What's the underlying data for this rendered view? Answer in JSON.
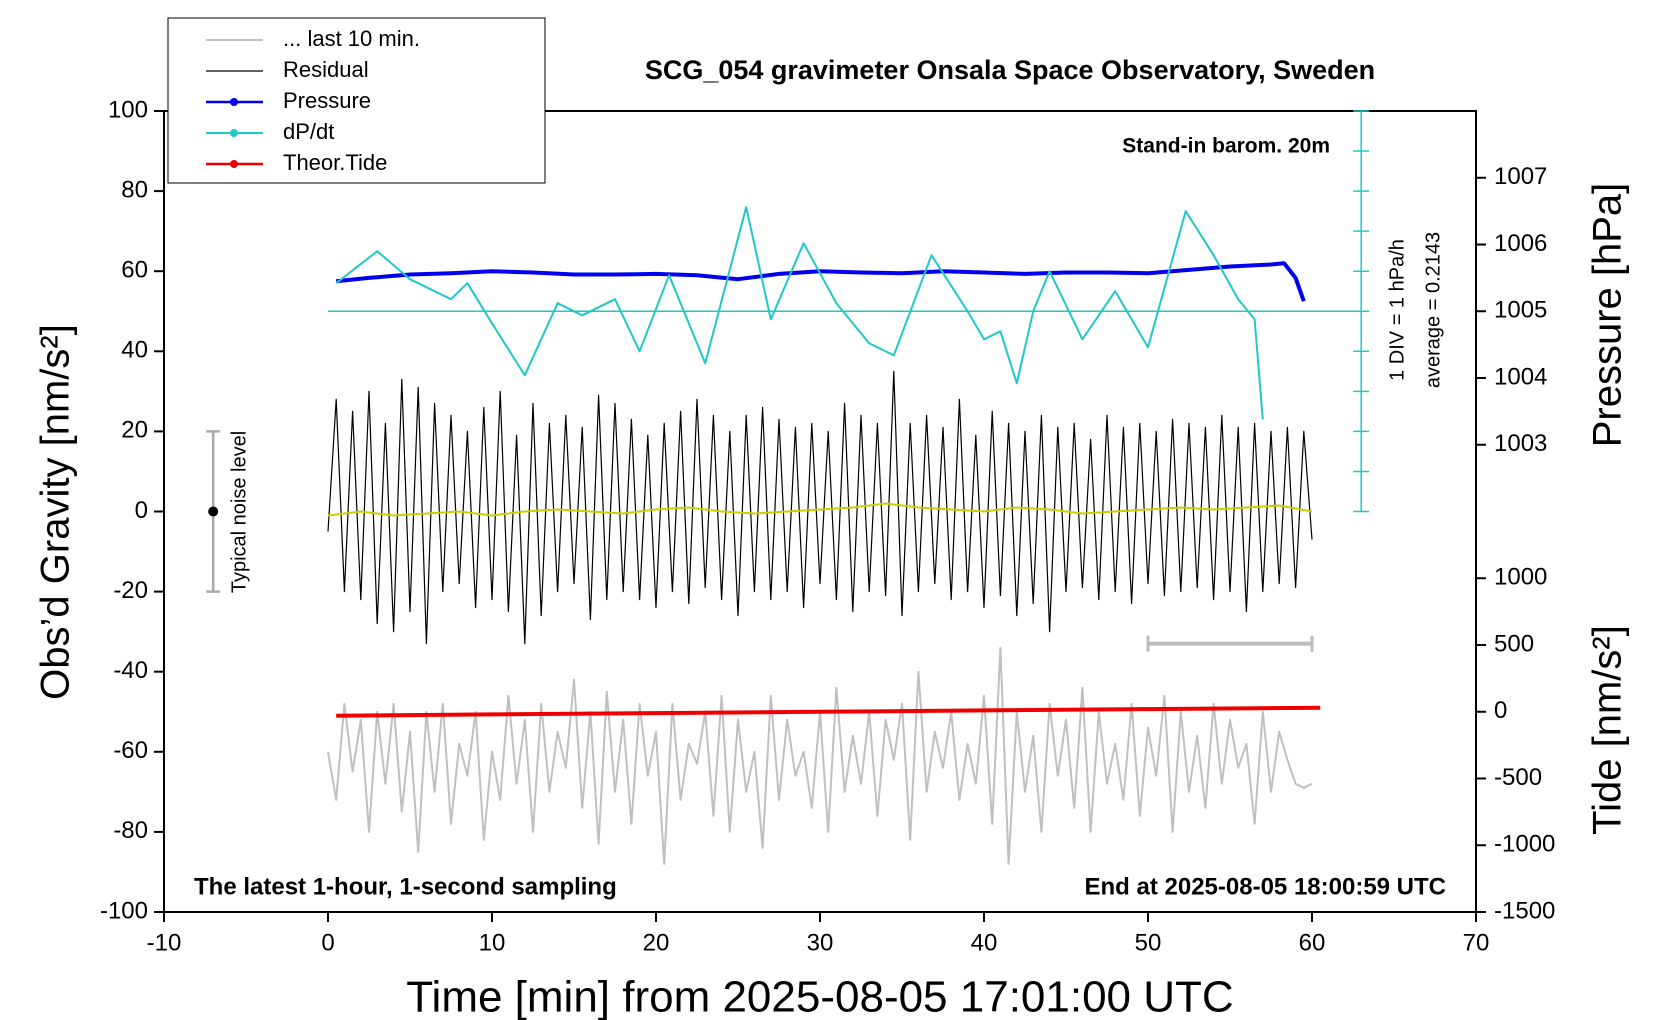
{
  "chart_data": {
    "type": "line",
    "title": "SCG_054 gravimeter Onsala Space Observatory, Sweden",
    "subtitle": "Stand-in barom. 20m",
    "annotations": [
      "1 DIV = 1 hPa/h",
      "average = 0.2143",
      "Typical noise level",
      "The latest 1-hour, 1-second sampling",
      "End at 2025-08-05 18:00:59 UTC"
    ],
    "xlabel": "Time [min] from 2025-08-05 17:01:00 UTC",
    "ylabel": "Obs’d Gravity [nm/s²]",
    "y2label": "Pressure [hPa]",
    "y3label": "Tide [nm/s²]",
    "legend": "upper left",
    "xlim": [
      -10,
      70
    ],
    "xticks": [
      -10,
      0,
      10,
      20,
      30,
      40,
      50,
      60,
      70
    ],
    "ylim": [
      -100,
      100
    ],
    "yticks": [
      -100,
      -80,
      -60,
      -40,
      -20,
      0,
      20,
      40,
      60,
      80,
      100
    ],
    "y2lim": [
      996,
      1008
    ],
    "y2ticks": [
      1003,
      1004,
      1005,
      1006,
      1007
    ],
    "y3lim": [
      -1500,
      4500
    ],
    "y3ticks": [
      -1500,
      -1000,
      -500,
      0,
      500,
      1000
    ],
    "y4lim": [
      -15,
      5
    ],
    "y4ticks": [
      -5,
      -4,
      -3,
      -2,
      -1,
      0,
      1,
      2,
      3,
      4,
      5
    ],
    "y4_axis_x": 63,
    "noise_bar": {
      "x": -7,
      "value": 0,
      "low": -20,
      "high": 20
    },
    "bracket": {
      "x": [
        50,
        60
      ],
      "y": -33
    },
    "x": [
      0,
      0.5,
      1,
      1.5,
      2,
      2.5,
      3,
      3.5,
      4,
      4.5,
      5,
      5.5,
      6,
      6.5,
      7,
      7.5,
      8,
      8.5,
      9,
      9.5,
      10,
      10.5,
      11,
      11.5,
      12,
      12.5,
      13,
      13.5,
      14,
      14.5,
      15,
      15.5,
      16,
      16.5,
      17,
      17.5,
      18,
      18.5,
      19,
      19.5,
      20,
      20.5,
      21,
      21.5,
      22,
      22.5,
      23,
      23.5,
      24,
      24.5,
      25,
      25.5,
      26,
      26.5,
      27,
      27.5,
      28,
      28.5,
      29,
      29.5,
      30,
      30.5,
      31,
      31.5,
      32,
      32.5,
      33,
      33.5,
      34,
      34.5,
      35,
      35.5,
      36,
      36.5,
      37,
      37.5,
      38,
      38.5,
      39,
      39.5,
      40,
      40.5,
      41,
      41.5,
      42,
      42.5,
      43,
      43.5,
      44,
      44.5,
      45,
      45.5,
      46,
      46.5,
      47,
      47.5,
      48,
      48.5,
      49,
      49.5,
      50,
      50.5,
      51,
      51.5,
      52,
      52.5,
      53,
      53.5,
      54,
      54.5,
      55,
      55.5,
      56,
      56.5,
      57,
      57.5,
      58,
      58.5,
      59,
      59.5,
      60
    ],
    "series": [
      {
        "name": "... last 10 min.",
        "color": "#c0c0c0",
        "width": 2,
        "values": [
          -60,
          -72,
          -48,
          -65,
          -52,
          -80,
          -50,
          -68,
          -48,
          -75,
          -55,
          -85,
          -50,
          -70,
          -48,
          -78,
          -58,
          -66,
          -50,
          -82,
          -60,
          -72,
          -46,
          -68,
          -52,
          -80,
          -48,
          -70,
          -55,
          -64,
          -42,
          -74,
          -50,
          -83,
          -45,
          -70,
          -52,
          -78,
          -48,
          -66,
          -55,
          -88,
          -48,
          -72,
          -58,
          -63,
          -50,
          -76,
          -46,
          -80,
          -52,
          -70,
          -60,
          -84,
          -46,
          -72,
          -52,
          -66,
          -60,
          -74,
          -50,
          -80,
          -44,
          -70,
          -56,
          -68,
          -50,
          -76,
          -52,
          -62,
          -48,
          -82,
          -40,
          -70,
          -55,
          -64,
          -50,
          -72,
          -58,
          -68,
          -46,
          -78,
          -34,
          -88,
          -50,
          -70,
          -56,
          -80,
          -48,
          -66,
          -52,
          -74,
          -44,
          -80,
          -50,
          -68,
          -58,
          -72,
          -48,
          -76,
          -54,
          -66,
          -46,
          -80,
          -50,
          -70,
          -56,
          -74,
          -48,
          -68,
          -52,
          -64,
          -58,
          -78,
          -50,
          -70,
          -55,
          -62,
          -68,
          -69,
          -68
        ]
      },
      {
        "name": "Residual",
        "color": "#000000",
        "width": 1.2,
        "values": [
          -5,
          28,
          -20,
          25,
          -22,
          30,
          -28,
          22,
          -30,
          33,
          -25,
          31,
          -33,
          27,
          -20,
          24,
          -18,
          20,
          -24,
          26,
          -22,
          30,
          -25,
          19,
          -33,
          27,
          -26,
          22,
          -20,
          24,
          -18,
          21,
          -27,
          29,
          -22,
          27,
          -20,
          23,
          -22,
          19,
          -24,
          22,
          -20,
          25,
          -23,
          28,
          -19,
          24,
          -22,
          20,
          -26,
          24,
          -20,
          26,
          -22,
          23,
          -20,
          21,
          -24,
          22,
          -18,
          20,
          -22,
          27,
          -25,
          24,
          -20,
          22,
          -21,
          35,
          -26,
          22,
          -20,
          24,
          -18,
          21,
          -22,
          28,
          -20,
          19,
          -24,
          25,
          -21,
          22,
          -26,
          20,
          -23,
          24,
          -30,
          21,
          -20,
          22,
          -19,
          18,
          -22,
          24,
          -20,
          21,
          -23,
          22,
          -18,
          20,
          -21,
          23,
          -20,
          22,
          -19,
          21,
          -22,
          24,
          -20,
          21,
          -25,
          22,
          -20,
          20,
          -18,
          21,
          -19,
          20,
          -7
        ]
      },
      {
        "color": "#cccc00",
        "width": 2,
        "x": [
          0,
          2,
          4,
          6,
          8,
          10,
          12,
          14,
          16,
          18,
          20,
          22,
          24,
          26,
          28,
          30,
          32,
          34,
          36,
          38,
          40,
          42,
          44,
          46,
          48,
          50,
          52,
          54,
          56,
          58,
          60
        ],
        "values": [
          -1,
          0,
          -1,
          -0.5,
          0,
          -1,
          0,
          0.5,
          0,
          -0.5,
          0.5,
          1,
          0,
          -0.5,
          0,
          0.5,
          1,
          2,
          1,
          0.5,
          0,
          1,
          0.5,
          -0.5,
          0,
          0.5,
          1,
          0.5,
          1,
          1.5,
          0
        ]
      },
      {
        "name": "Pressure",
        "color": "#0000ee",
        "width": 4,
        "marker": true,
        "axis": "y2",
        "x": [
          0.5,
          2.5,
          5,
          7.5,
          10,
          12.5,
          15,
          17.5,
          20,
          22.5,
          25,
          27.5,
          30,
          32.5,
          35,
          37.5,
          40,
          42.5,
          45,
          47.5,
          50,
          52.5,
          55,
          57.5,
          58.3,
          59,
          59.5
        ],
        "values": [
          1005.45,
          1005.5,
          1005.55,
          1005.57,
          1005.6,
          1005.58,
          1005.55,
          1005.55,
          1005.56,
          1005.54,
          1005.48,
          1005.56,
          1005.6,
          1005.58,
          1005.57,
          1005.6,
          1005.58,
          1005.56,
          1005.58,
          1005.58,
          1005.57,
          1005.62,
          1005.67,
          1005.7,
          1005.72,
          1005.5,
          1005.15
        ]
      },
      {
        "name": "dP/dt",
        "color": "#20c8c8",
        "width": 2,
        "marker": true,
        "axis": "y4",
        "x": [
          0.5,
          3,
          5,
          7.5,
          8.5,
          10,
          12,
          14,
          15.5,
          17.5,
          19,
          20.8,
          23,
          25.5,
          27,
          29,
          31,
          33,
          34.5,
          36.8,
          39,
          40,
          41,
          42,
          43,
          44,
          46,
          48,
          50,
          52.3,
          54,
          55.5,
          56.5,
          57
        ],
        "values": [
          0.7,
          1.5,
          0.8,
          0.3,
          0.7,
          -0.3,
          -1.6,
          0.2,
          -0.1,
          0.3,
          -1,
          0.9,
          -1.3,
          2.6,
          -0.2,
          1.7,
          0.2,
          -0.8,
          -1.1,
          1.4,
          0,
          -0.7,
          -0.5,
          -1.8,
          0,
          1,
          -0.7,
          0.5,
          -0.9,
          2.5,
          1.4,
          0.3,
          -0.2,
          -2.7
        ]
      },
      {
        "name": "Theor.Tide",
        "color": "#ee0000",
        "width": 4,
        "marker": true,
        "axis": "y3",
        "x": [
          0.5,
          10,
          20,
          30,
          40,
          50,
          60.5
        ],
        "values": [
          -30,
          -20,
          -10,
          0,
          10,
          20,
          30
        ]
      }
    ]
  }
}
